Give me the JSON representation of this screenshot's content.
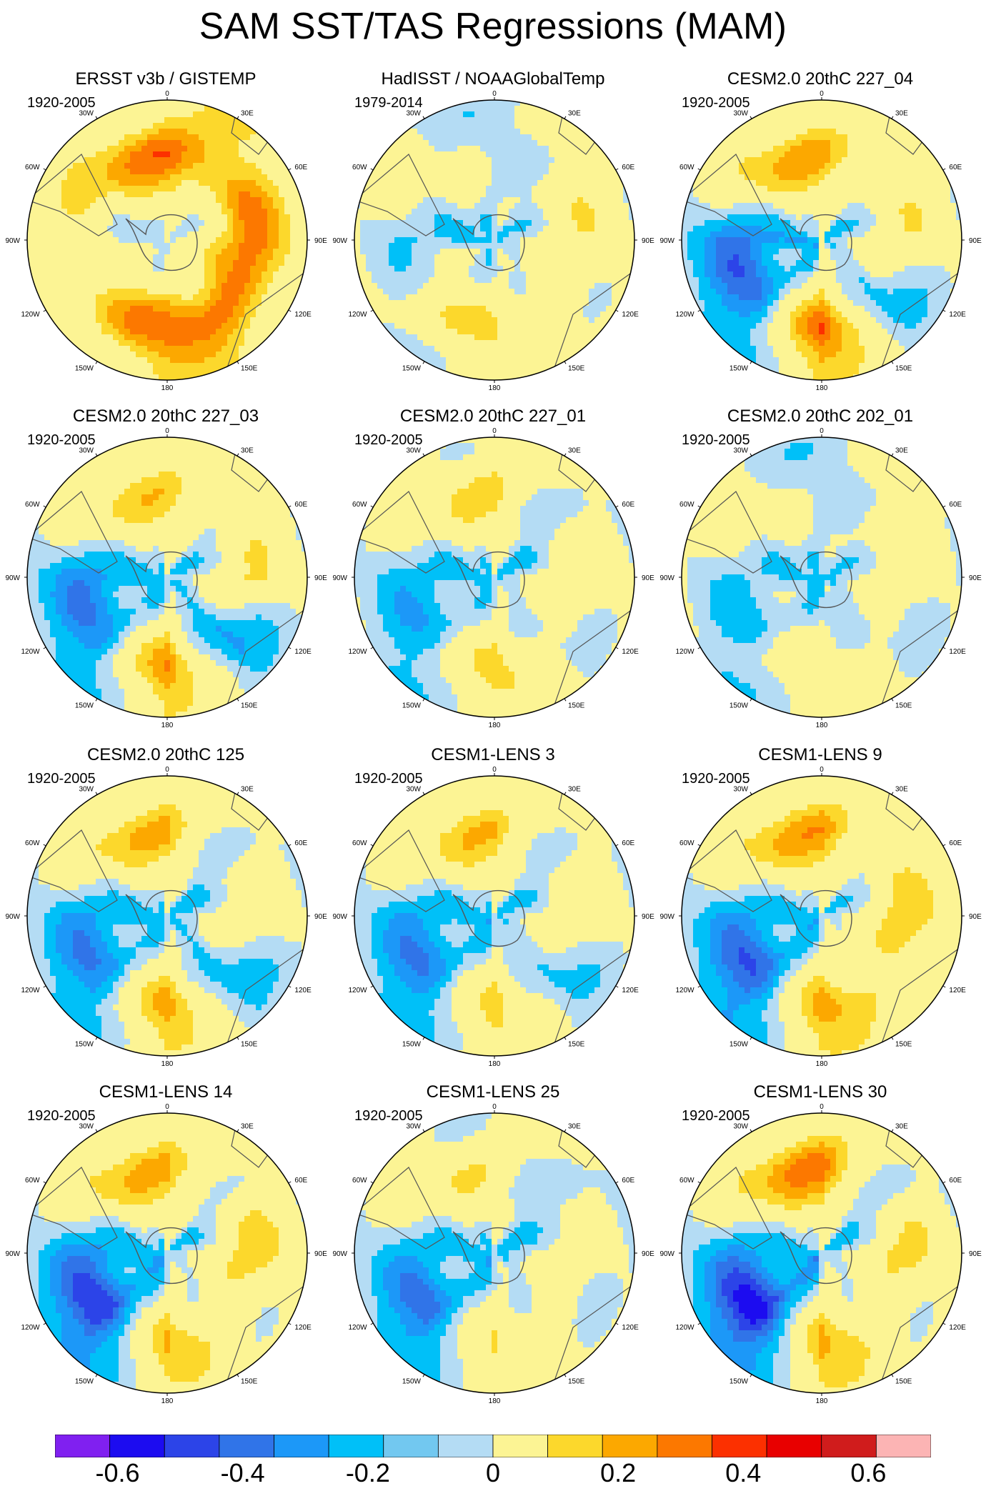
{
  "title": "SAM SST/TAS Regressions (MAM)",
  "panels": [
    {
      "title": "ERSST v3b / GISTEMP",
      "period": "1920-2005",
      "pattern": [
        0.38,
        0.22,
        0.32,
        0.34,
        0.36,
        0.18,
        0.08,
        0.2
      ]
    },
    {
      "title": "HadISST / NOAAGlobalTemp",
      "period": "1979-2014",
      "pattern": [
        -0.02,
        0.06,
        0.12,
        0.1,
        0.16,
        0.08,
        -0.06,
        0.04
      ]
    },
    {
      "title": "CESM2.0 20thC 227_04",
      "period": "1920-2005",
      "pattern": [
        0.28,
        0.05,
        0.12,
        -0.1,
        0.38,
        -0.22,
        -0.25,
        0.18
      ]
    },
    {
      "title": "CESM2.0 20thC 227_03",
      "period": "1920-2005",
      "pattern": [
        0.22,
        0.02,
        0.14,
        -0.16,
        0.3,
        -0.18,
        -0.2,
        0.12
      ]
    },
    {
      "title": "CESM2.0 20thC 227_01",
      "period": "1920-2005",
      "pattern": [
        0.2,
        -0.05,
        0.12,
        0.02,
        0.2,
        -0.12,
        -0.1,
        0.08
      ]
    },
    {
      "title": "CESM2.0 20thC 202_01",
      "period": "1920-2005",
      "pattern": [
        -0.05,
        0.08,
        0.06,
        0.02,
        0.1,
        -0.08,
        -0.06,
        0.06
      ]
    },
    {
      "title": "CESM2.0 20thC 125",
      "period": "1920-2005",
      "pattern": [
        0.26,
        -0.04,
        0.1,
        -0.12,
        0.28,
        -0.2,
        -0.16,
        0.14
      ]
    },
    {
      "title": "CESM1-LENS 3",
      "period": "1920-2005",
      "pattern": [
        0.24,
        -0.03,
        0.1,
        -0.08,
        0.2,
        -0.22,
        -0.14,
        0.12
      ]
    },
    {
      "title": "CESM1-LENS 9",
      "period": "1920-2005",
      "pattern": [
        0.3,
        0.04,
        0.2,
        0.12,
        0.28,
        -0.3,
        -0.16,
        0.16
      ]
    },
    {
      "title": "CESM1-LENS 14",
      "period": "1920-2005",
      "pattern": [
        0.26,
        0.0,
        0.2,
        0.08,
        0.24,
        -0.36,
        -0.2,
        0.16
      ]
    },
    {
      "title": "CESM1-LENS 25",
      "period": "1920-2005",
      "pattern": [
        0.14,
        -0.06,
        0.04,
        0.06,
        0.16,
        -0.26,
        -0.12,
        0.1
      ]
    },
    {
      "title": "CESM1-LENS 30",
      "period": "1920-2005",
      "pattern": [
        0.36,
        -0.06,
        0.18,
        0.08,
        0.26,
        -0.44,
        -0.18,
        0.18
      ]
    }
  ],
  "map_labels": {
    "north": "0",
    "nne": "30E",
    "ene": "60E",
    "east": "90E",
    "ese": "120E",
    "sse": "150E",
    "south": "180",
    "ssw": "150W",
    "wsw": "120W",
    "west": "90W",
    "wnw": "60W",
    "nnw": "30W"
  },
  "colorbar": {
    "colors": [
      "#8020f0",
      "#1c0cf0",
      "#2c44e8",
      "#3074e8",
      "#1c98f8",
      "#00c0f8",
      "#72c8f0",
      "#b4dcf4",
      "#fcf494",
      "#fcd82c",
      "#fca800",
      "#fc7800",
      "#fc3000",
      "#e80000",
      "#d01c1c",
      "#fcb4b4"
    ],
    "bounds": [
      -0.7,
      0.7
    ],
    "tick_labels": [
      "-0.6",
      "-0.4",
      "-0.2",
      "0",
      "0.2",
      "0.4",
      "0.6"
    ],
    "tick_values": [
      -0.6,
      -0.4,
      -0.2,
      0,
      0.2,
      0.4,
      0.6
    ]
  }
}
